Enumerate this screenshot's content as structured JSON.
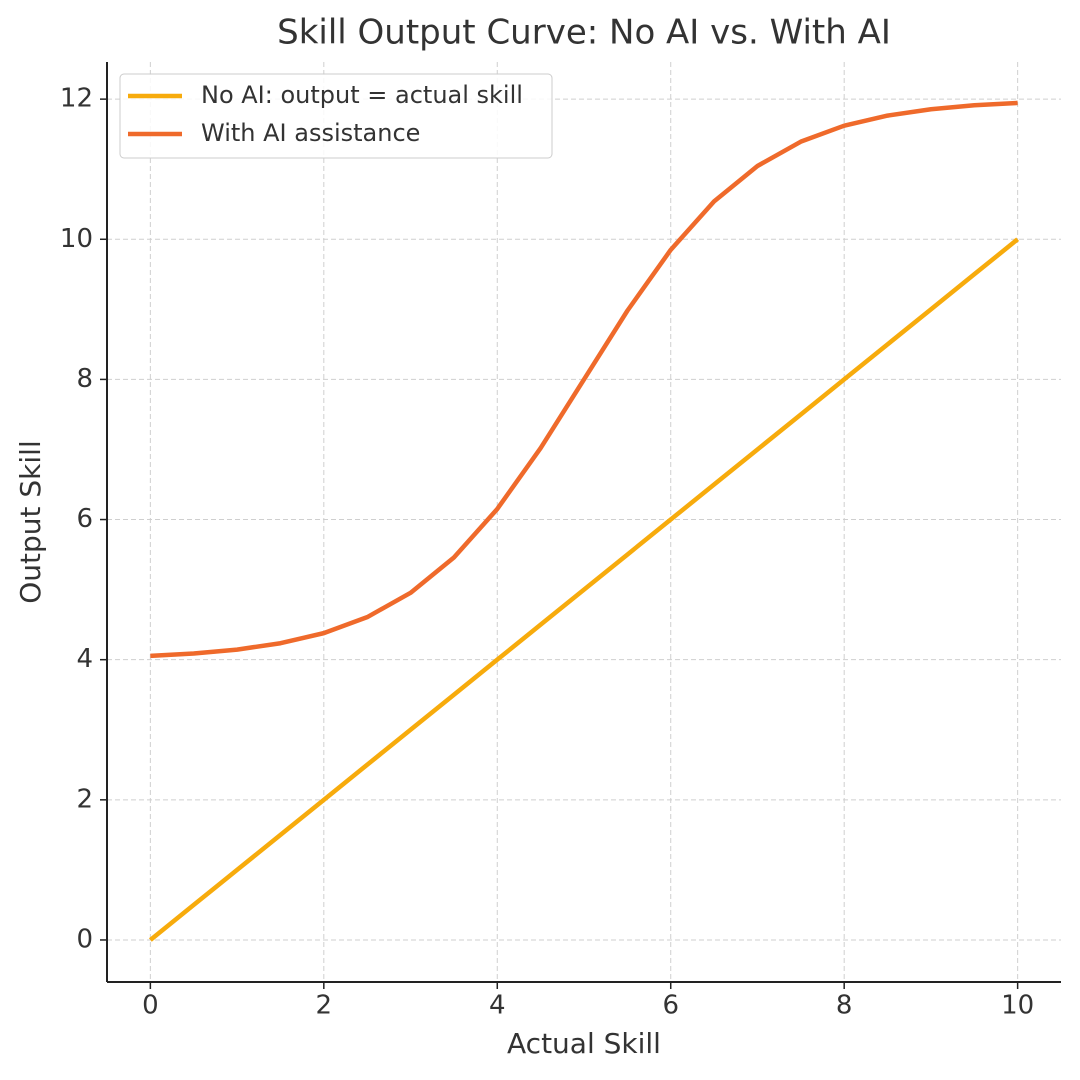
{
  "chart_data": {
    "type": "line",
    "title": "Skill Output Curve: No AI vs. With AI",
    "x_label": "Actual Skill",
    "y_label": "Output Skill",
    "x": [
      0,
      0.5,
      1,
      1.5,
      2,
      2.5,
      3,
      3.5,
      4,
      4.5,
      5,
      5.5,
      6,
      6.5,
      7,
      7.5,
      8,
      8.5,
      9,
      9.5,
      10
    ],
    "series": [
      {
        "name": "No AI: output = actual skill",
        "color": "#f7ab0c",
        "values": [
          0,
          0.5,
          1,
          1.5,
          2,
          2.5,
          3,
          3.5,
          4,
          4.5,
          5,
          5.5,
          6,
          6.5,
          7,
          7.5,
          8,
          8.5,
          9,
          9.5,
          10
        ]
      },
      {
        "name": "With AI assistance",
        "color": "#ef6a2b",
        "values": [
          4.054,
          4.088,
          4.144,
          4.235,
          4.379,
          4.607,
          4.954,
          5.459,
          6.151,
          7.02,
          8,
          8.98,
          9.849,
          10.541,
          11.046,
          11.393,
          11.621,
          11.765,
          11.856,
          11.912,
          11.946
        ]
      }
    ],
    "xlim": [
      -0.5,
      10.5
    ],
    "ylim": [
      -0.6,
      12.53
    ],
    "xticks": [
      0,
      2,
      4,
      6,
      8,
      10
    ],
    "yticks": [
      0,
      2,
      4,
      6,
      8,
      10,
      12
    ],
    "grid": true,
    "legend": "upper-left"
  }
}
